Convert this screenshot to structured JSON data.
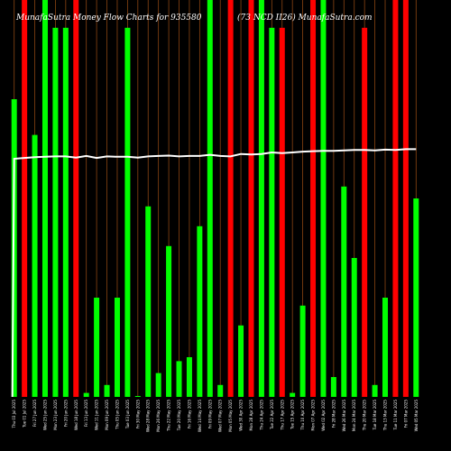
{
  "chart_data": {
    "type": "bar",
    "title_parts": [
      "MunafaSutra  Money Flow  Charts for 935580",
      "(73 NCD II26) MunafaSutra.com"
    ],
    "colors": {
      "green": "#00ff00",
      "red": "#ff0000",
      "line": "#ffffff",
      "grid": "#8b4513",
      "background": "#000000"
    },
    "ylim": [
      0,
      100
    ],
    "categories": [
      "Thu 03 Jul 2025",
      "Tue 01 Jul 2025",
      "Fri 27 Jun 2025",
      "Wed 25 Jun 2025",
      "Mon 23 Jun 2025",
      "Fri 20 Jun 2025",
      "Wed 18 Jun 2025",
      "Fri 13 Jun 2025",
      "Wed 11 Jun 2025",
      "Mon 09 Jun 2025",
      "Thu 05 Jun 2025",
      "Tue 03 Jun 2025",
      "Fri 30 May 2025",
      "Wed 28 May 2025",
      "Mon 26 May 2025",
      "Thu 22 May 2025",
      "Tue 20 May 2025",
      "Fri 16 May 2025",
      "Wed 14 May 2025",
      "Fri 09 May 2025",
      "Wed 07 May 2025",
      "Mon 05 May 2025",
      "Wed 30 Apr 2025",
      "Mon 28 Apr 2025",
      "Thu 24 Apr 2025",
      "Tue 22 Apr 2025",
      "Thu 17 Apr 2025",
      "Tue 15 Apr 2025",
      "Thu 10 Apr 2025",
      "Mon 07 Apr 2025",
      "Wed 02 Apr 2025",
      "Fri 28 Mar 2025",
      "Wed 26 Mar 2025",
      "Mon 24 Mar 2025",
      "Thu 20 Mar 2025",
      "Tue 18 Mar 2025",
      "Thu 13 Mar 2025",
      "Tue 11 Mar 2025",
      "Fri 07 Mar 2025",
      "Wed 05 Mar 2025"
    ],
    "values": [
      75,
      100,
      66,
      100,
      93,
      93,
      100,
      1,
      25,
      3,
      25,
      93,
      0,
      48,
      6,
      38,
      9,
      10,
      43,
      100,
      3,
      100,
      18,
      100,
      100,
      93,
      93,
      1,
      23,
      100,
      100,
      5,
      53,
      35,
      93,
      3,
      25,
      100,
      100,
      50
    ],
    "bar_colors": [
      "green",
      "red",
      "green",
      "green",
      "green",
      "green",
      "red",
      "green",
      "green",
      "green",
      "green",
      "green",
      "green",
      "green",
      "green",
      "green",
      "green",
      "green",
      "green",
      "green",
      "green",
      "red",
      "green",
      "red",
      "green",
      "green",
      "red",
      "green",
      "green",
      "red",
      "green",
      "green",
      "green",
      "green",
      "red",
      "green",
      "green",
      "red",
      "red",
      "green"
    ],
    "line_values": [
      60,
      60.2,
      60.4,
      60.5,
      60.6,
      60.6,
      60.3,
      60.7,
      60.2,
      60.6,
      60.5,
      60.5,
      60.3,
      60.6,
      60.7,
      60.8,
      60.6,
      60.7,
      60.7,
      61.0,
      60.7,
      60.6,
      61.2,
      61.1,
      61.2,
      61.6,
      61.4,
      61.6,
      61.8,
      61.9,
      62.0,
      62.0,
      62.1,
      62.2,
      62.2,
      62.1,
      62.3,
      62.2,
      62.4,
      62.4
    ],
    "line_start_value": 0
  }
}
